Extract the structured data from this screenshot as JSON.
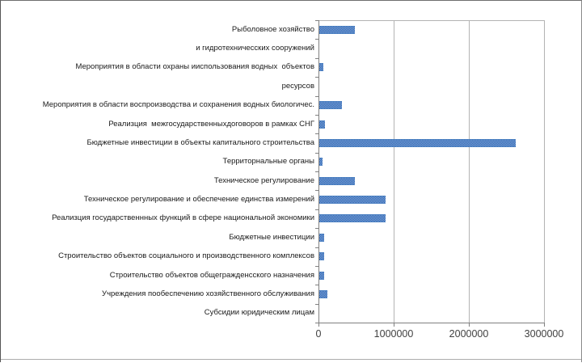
{
  "frame": {
    "background": "#ffffff",
    "border_color": "#6e6e6e",
    "bottom_rule_color": "#adadad"
  },
  "chart_data": {
    "type": "bar",
    "orientation": "horizontal",
    "title": "",
    "xlabel": "",
    "ylabel": "",
    "grid": true,
    "legend": false,
    "xlim": [
      0,
      3000000
    ],
    "x_ticks": [
      0,
      1000000,
      2000000,
      3000000
    ],
    "x_tick_labels": [
      "0",
      "1000000",
      "2000000",
      "3000000"
    ],
    "categories": [
      "Рыболовное хозяйство",
      "и гидротехничесских сооружений",
      "Мероприятия в области охраны ииспользования водных  объектов",
      "ресурсов",
      "Мероприятия в области воспроизводства и сохранения водных биологичес.",
      "Реализция  межгосударственныхдоговоров в рамках СНГ",
      "Бюджетные инвестиции в объекты капитального строительства",
      "Территорнальные органы",
      "Техническое регулирование",
      "Техническое регулирование и обеспечение единства измерений",
      "Реализция государственнных функций в сфере национальной экономики",
      "Бюджетные инвестиции",
      "Строительство объектов социального и производственного комплексов",
      "Строительство объектов общегражденсского назначения",
      "Учреждения пообеспечению хозяйственного обслуживания",
      "Субсидии юридическим лицам"
    ],
    "values": [
      470000,
      0,
      57000,
      0,
      300000,
      75000,
      2610000,
      48000,
      475000,
      885000,
      880000,
      68000,
      61000,
      60000,
      111000,
      0
    ],
    "colors": {
      "bar_dark": "#2f62ad",
      "bar_light": "#7fa8dd",
      "bar_edge": "#4a7fc1",
      "gridline": "#b3b3b3",
      "axis": "#808080",
      "category_text": "#1a1a1a",
      "value_text": "#404040"
    }
  }
}
